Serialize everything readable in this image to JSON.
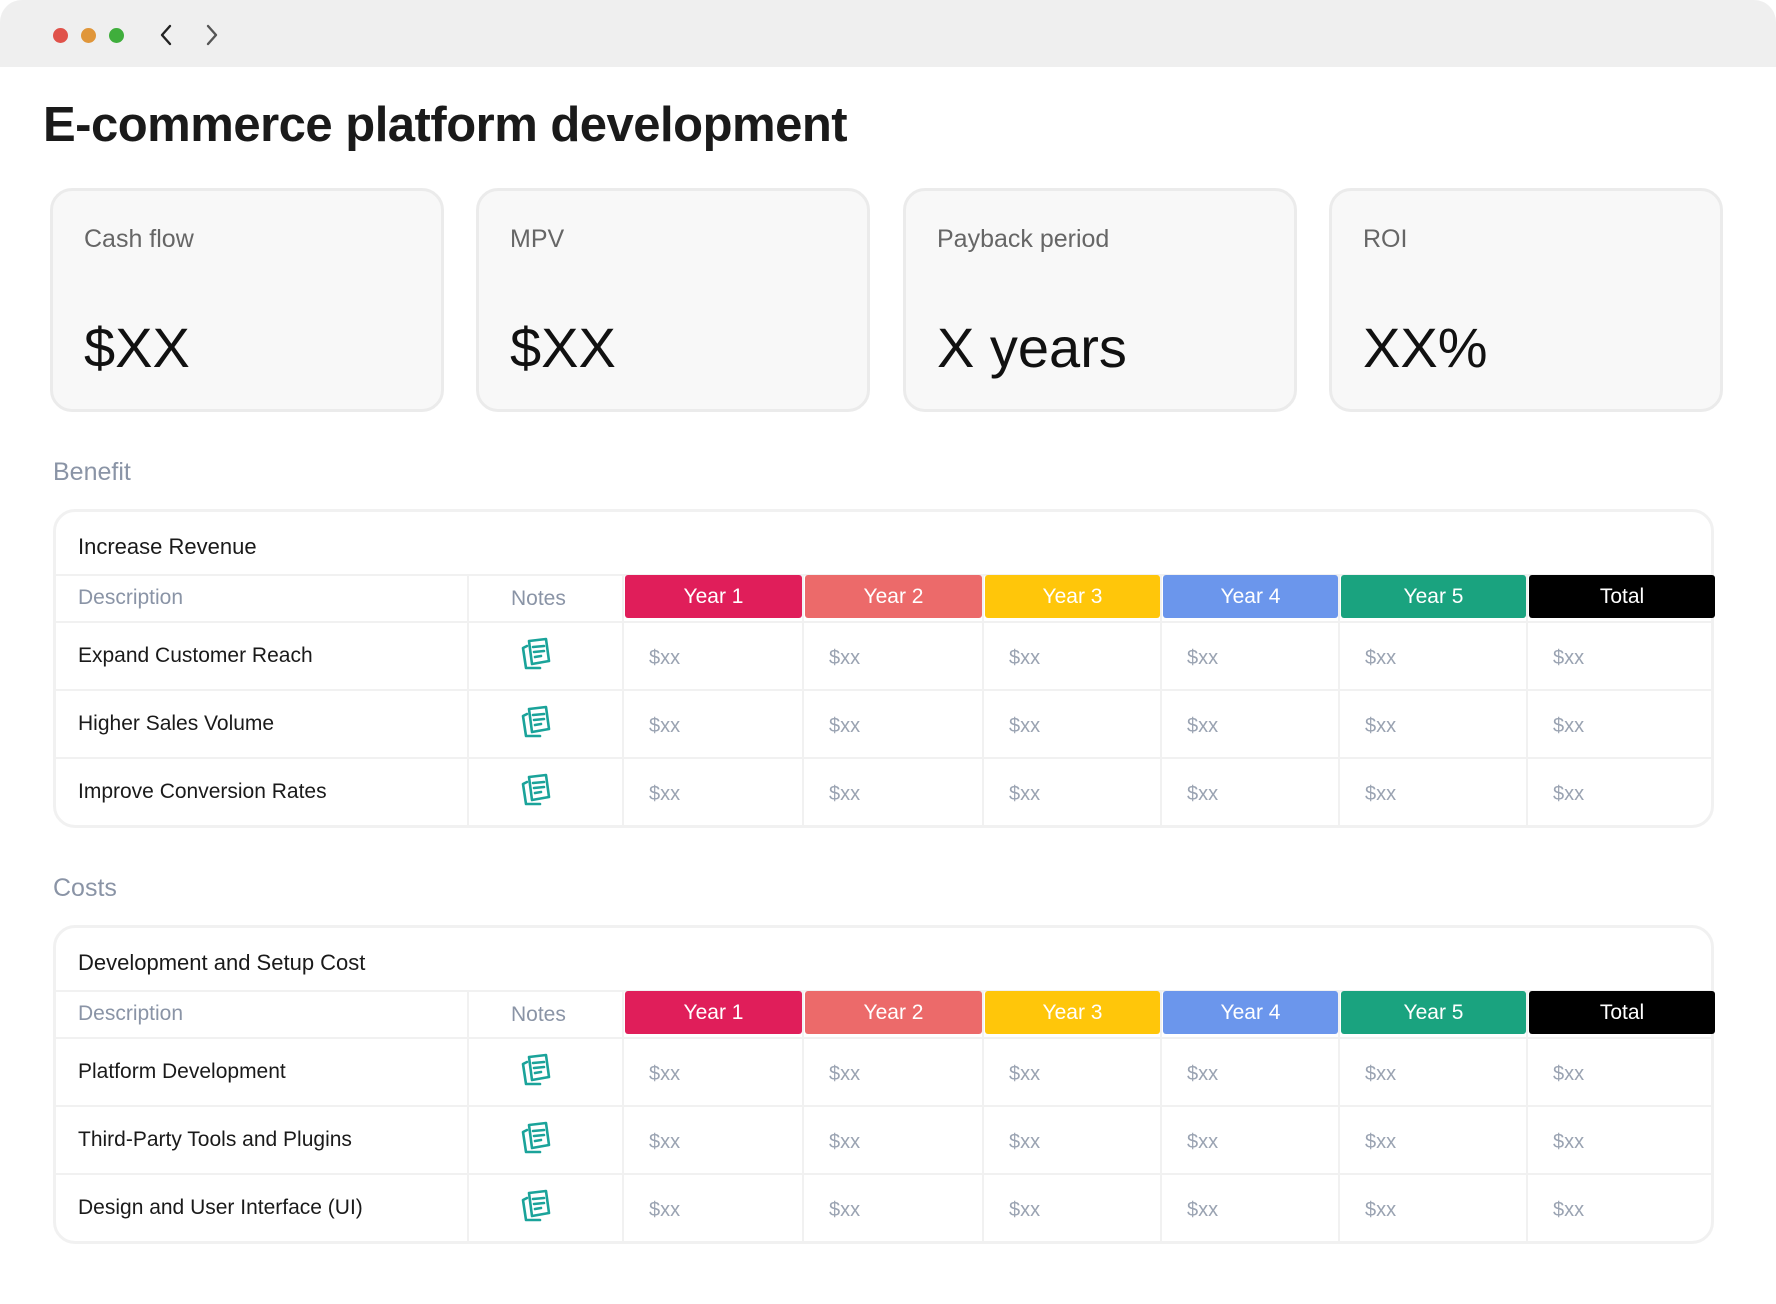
{
  "window": {
    "controls": {
      "close_color": "#e0524a",
      "minimize_color": "#e0963a",
      "maximize_color": "#3fae3c"
    },
    "nav": {
      "back_icon": "chevron-left-icon",
      "forward_icon": "chevron-right-icon"
    }
  },
  "page": {
    "title": "E-commerce platform development"
  },
  "kpis": [
    {
      "label": "Cash flow",
      "value": "$XX"
    },
    {
      "label": "MPV",
      "value": "$XX"
    },
    {
      "label": "Payback period",
      "value": "X years"
    },
    {
      "label": "ROI",
      "value": "XX%"
    }
  ],
  "columns": {
    "description": "Description",
    "notes": "Notes",
    "years": [
      {
        "label": "Year 1",
        "color": "#e01e5a"
      },
      {
        "label": "Year 2",
        "color": "#ec6a6a"
      },
      {
        "label": "Year 3",
        "color": "#ffc60a"
      },
      {
        "label": "Year 4",
        "color": "#6b96ec"
      },
      {
        "label": "Year 5",
        "color": "#1aa37f"
      },
      {
        "label": "Total",
        "color": "#000000"
      }
    ]
  },
  "note_icon": {
    "name": "notes-icon",
    "color": "#1aa39a"
  },
  "sections": [
    {
      "label": "Benefit",
      "table_title": "Increase Revenue",
      "rows": [
        {
          "description": "Expand Customer Reach",
          "values": [
            "$xx",
            "$xx",
            "$xx",
            "$xx",
            "$xx",
            "$xx"
          ]
        },
        {
          "description": "Higher Sales Volume",
          "values": [
            "$xx",
            "$xx",
            "$xx",
            "$xx",
            "$xx",
            "$xx"
          ]
        },
        {
          "description": "Improve Conversion Rates",
          "values": [
            "$xx",
            "$xx",
            "$xx",
            "$xx",
            "$xx",
            "$xx"
          ]
        }
      ]
    },
    {
      "label": "Costs",
      "table_title": "Development and Setup Cost",
      "rows": [
        {
          "description": "Platform Development",
          "values": [
            "$xx",
            "$xx",
            "$xx",
            "$xx",
            "$xx",
            "$xx"
          ]
        },
        {
          "description": "Third-Party Tools and Plugins",
          "values": [
            "$xx",
            "$xx",
            "$xx",
            "$xx",
            "$xx",
            "$xx"
          ]
        },
        {
          "description": "Design and User Interface (UI)",
          "values": [
            "$xx",
            "$xx",
            "$xx",
            "$xx",
            "$xx",
            "$xx"
          ]
        }
      ]
    }
  ]
}
